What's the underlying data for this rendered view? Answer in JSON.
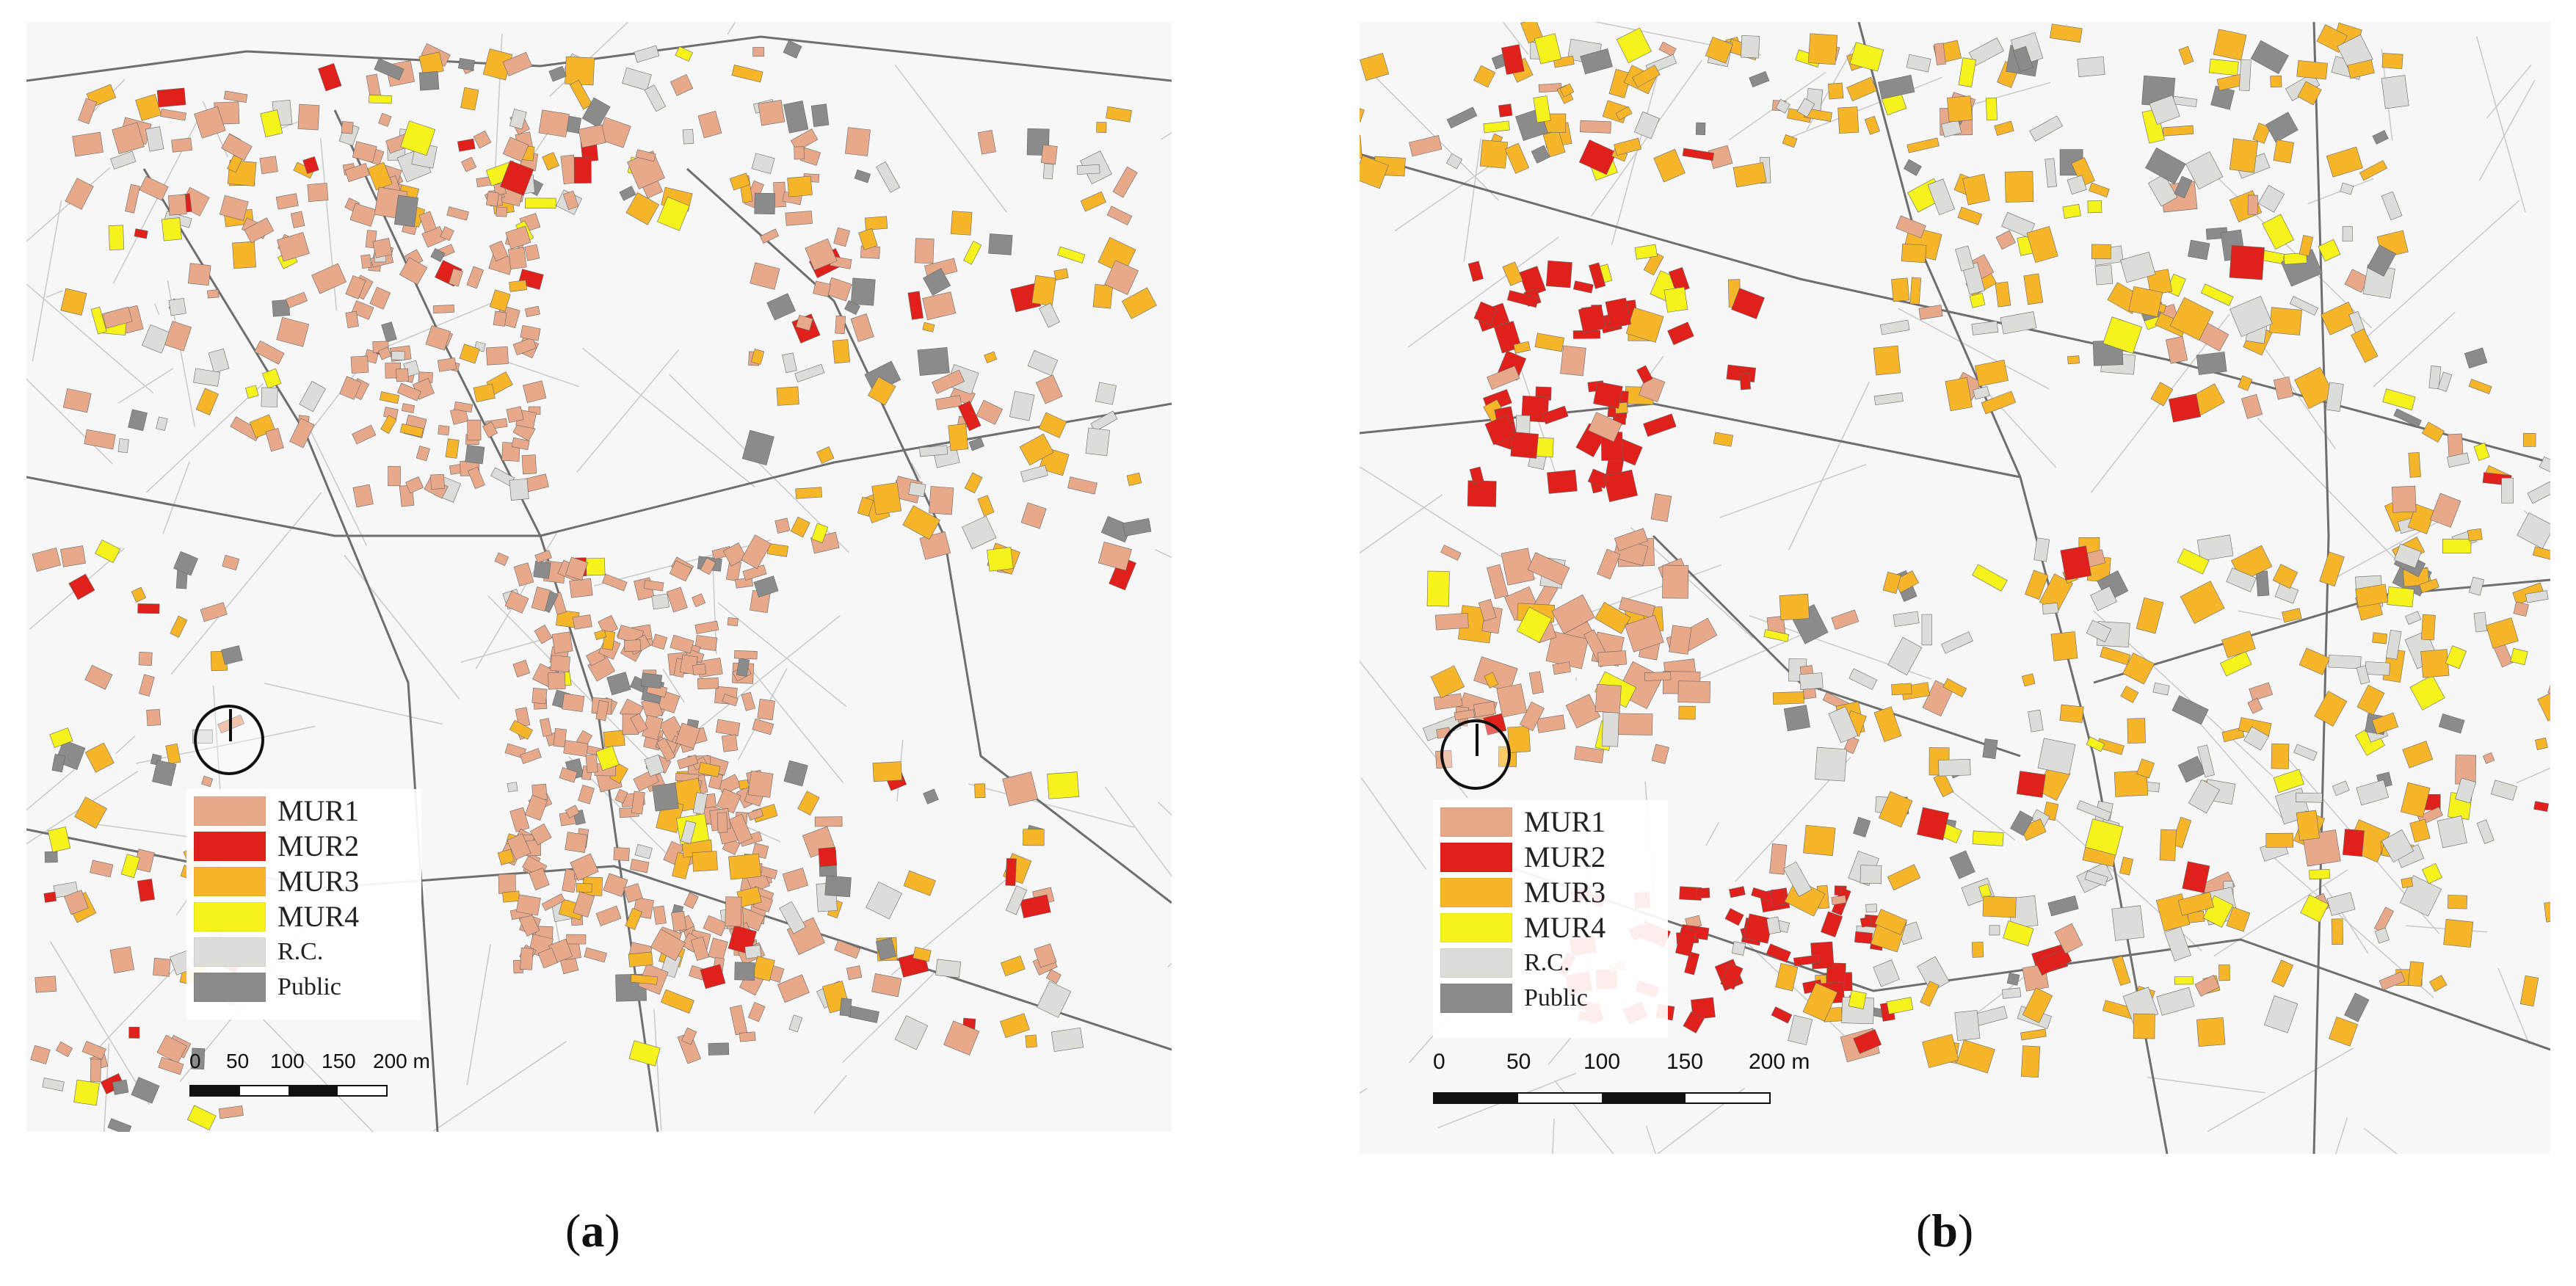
{
  "legend": {
    "items": [
      {
        "label": "MUR1",
        "color": "#e8a98a"
      },
      {
        "label": "MUR2",
        "color": "#e0201a"
      },
      {
        "label": "MUR3",
        "color": "#f7b52a"
      },
      {
        "label": "MUR4",
        "color": "#f5f21c"
      },
      {
        "label": "R.C.",
        "color": "#dcdcd8"
      },
      {
        "label": "Public",
        "color": "#8b8b8b"
      }
    ]
  },
  "panel_a": {
    "caption_open": "(",
    "caption_letter": "a",
    "caption_close": ")",
    "scale_ticks": [
      "0",
      "50",
      "100",
      "150",
      "200 m"
    ]
  },
  "panel_b": {
    "caption_open": "(",
    "caption_letter": "b",
    "caption_close": ")",
    "scale_ticks": [
      "0",
      "50",
      "100",
      "150",
      "200 m"
    ]
  },
  "colors": {
    "background": "#f7f7f7",
    "street": "#6e6e6e",
    "parcel": "#c8c8c8"
  }
}
